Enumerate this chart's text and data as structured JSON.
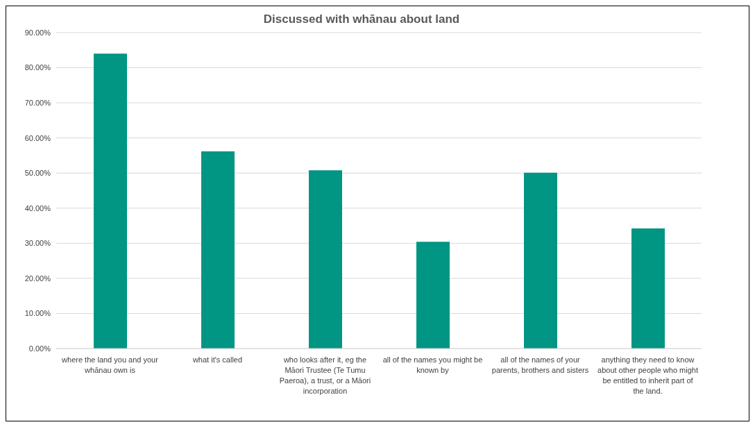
{
  "chart_data": {
    "type": "bar",
    "title": "Discussed with whānau about land",
    "categories": [
      "where the land you and your whānau own is",
      "what it's called",
      "who looks after it, eg the Māori Trustee (Te Tumu Paeroa), a trust, or a Māori incorporation",
      "all of the names you might be known by",
      "all of the names of your parents, brothers and sisters",
      "anything they need to know about other people who might be entitled to inherit part of the land."
    ],
    "values": [
      84,
      56.2,
      50.8,
      30.4,
      50.1,
      34.2
    ],
    "color": "#009683",
    "ylim": [
      0,
      90
    ],
    "yticks": [
      {
        "value": 0,
        "label": "0.00%"
      },
      {
        "value": 10,
        "label": "10.00%"
      },
      {
        "value": 20,
        "label": "20.00%"
      },
      {
        "value": 30,
        "label": "30.00%"
      },
      {
        "value": 40,
        "label": "40.00%"
      },
      {
        "value": 50,
        "label": "50.00%"
      },
      {
        "value": 60,
        "label": "60.00%"
      },
      {
        "value": 70,
        "label": "70.00%"
      },
      {
        "value": 80,
        "label": "80.00%"
      },
      {
        "value": 90,
        "label": "90.00%"
      }
    ],
    "grid": "y"
  }
}
